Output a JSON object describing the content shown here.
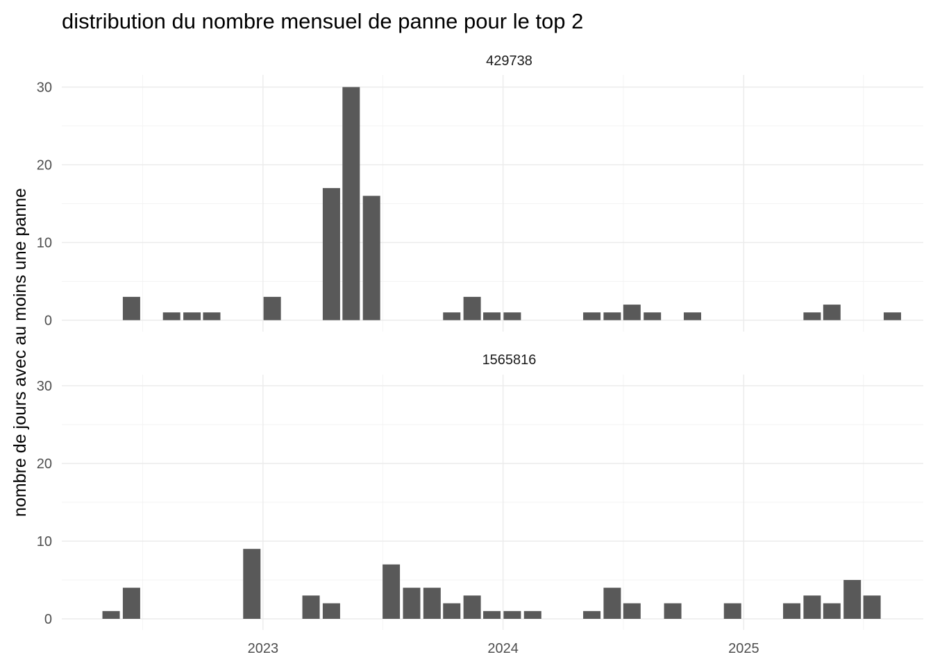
{
  "chart_data": {
    "type": "bar",
    "title": "distribution du nombre mensuel de panne pour le top 2",
    "xlabel": "",
    "ylabel": "nombre de jours avec au moins une panne",
    "ylim": [
      0,
      30
    ],
    "y_ticks": [
      0,
      10,
      20,
      30
    ],
    "x_range": [
      "2022-03-01",
      "2025-10-01"
    ],
    "x_ticks": [
      {
        "date": "2023-01-01",
        "label": "2023"
      },
      {
        "date": "2024-01-01",
        "label": "2024"
      },
      {
        "date": "2025-01-01",
        "label": "2025"
      }
    ],
    "grid": true,
    "facets": [
      {
        "label": "429738",
        "months": [
          "2022-06",
          "2022-08",
          "2022-09",
          "2022-10",
          "2023-01",
          "2023-04",
          "2023-05",
          "2023-06",
          "2023-10",
          "2023-11",
          "2023-12",
          "2024-01",
          "2024-05",
          "2024-06",
          "2024-07",
          "2024-08",
          "2024-10",
          "2025-04",
          "2025-05",
          "2025-08"
        ],
        "values": [
          3,
          1,
          1,
          1,
          3,
          17,
          30,
          16,
          1,
          3,
          1,
          1,
          1,
          1,
          2,
          1,
          1,
          1,
          2,
          1
        ]
      },
      {
        "label": "1565816",
        "months": [
          "2022-05",
          "2022-06",
          "2022-12",
          "2023-03",
          "2023-04",
          "2023-07",
          "2023-08",
          "2023-09",
          "2023-10",
          "2023-11",
          "2023-12",
          "2024-01",
          "2024-02",
          "2024-05",
          "2024-06",
          "2024-07",
          "2024-09",
          "2024-12",
          "2025-03",
          "2025-04",
          "2025-05",
          "2025-06",
          "2025-07"
        ],
        "values": [
          1,
          4,
          9,
          3,
          2,
          7,
          4,
          4,
          2,
          3,
          1,
          1,
          1,
          1,
          4,
          2,
          2,
          2,
          2,
          3,
          2,
          5,
          3
        ]
      }
    ]
  }
}
